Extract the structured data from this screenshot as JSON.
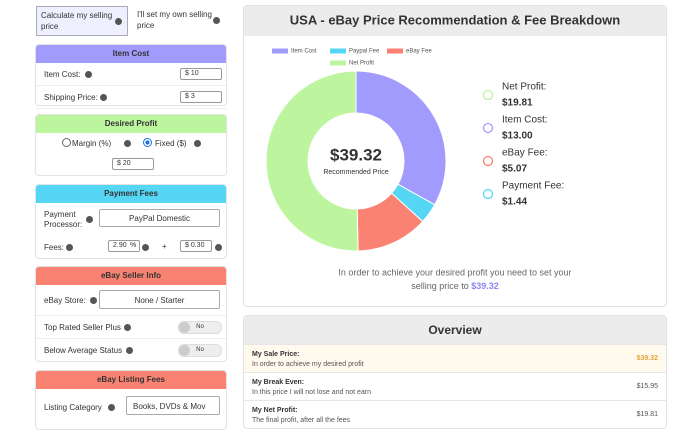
{
  "tabs": [
    "Calculate my selling price",
    "I'll set my own selling price"
  ],
  "item_cost": {
    "title": "Item Cost",
    "rows": [
      {
        "label": "Item Cost:",
        "value": "$ 10"
      },
      {
        "label": "Shipping Price:",
        "value": "$ 3"
      }
    ]
  },
  "desired_profit": {
    "title": "Desired Profit",
    "options": [
      "Margin (%)",
      "Fixed ($)"
    ],
    "value": "$ 20"
  },
  "payment_fees": {
    "title": "Payment Fees",
    "processor_label": "Payment Processor:",
    "processor": "PayPal Domestic",
    "fees_label": "Fees:",
    "percent": "2.90",
    "percent_unit": "%",
    "plus": "+",
    "fixed": "$ 0.30"
  },
  "seller_info": {
    "title": "eBay Seller Info",
    "store_label": "eBay Store:",
    "store": "None / Starter",
    "top_rated_label": "Top Rated Seller Plus",
    "top_rated": "No",
    "below_average_label": "Below Average Status",
    "below_average": "No"
  },
  "listing_fees": {
    "title": "eBay Listing Fees",
    "category_label": "Listing Category",
    "category": "Books, DVDs & Mov"
  },
  "chart_data": {
    "type": "pie",
    "title": "USA - eBay Price Recommendation & Fee Breakdown",
    "categories": [
      "Item Cost",
      "Paypal Fee",
      "eBay Fee",
      "Net Profit"
    ],
    "values": [
      13.0,
      1.44,
      5.07,
      19.81
    ],
    "value_labels": [
      "$13.00",
      "$1.44",
      "$5.07",
      "$19.81"
    ],
    "colors": [
      "#a29bfe",
      "#55d6f5",
      "#f98272",
      "#bdf59e"
    ],
    "center_value": "$39.32",
    "center_label": "Recommended Price"
  },
  "summary": [
    {
      "label": "Net Profit:",
      "index": 3
    },
    {
      "label": "Item Cost:",
      "index": 0
    },
    {
      "label": "eBay Fee:",
      "index": 2
    },
    {
      "label": "Payment Fee:",
      "index": 1
    }
  ],
  "recommendation": {
    "text": "In order to achieve your desired profit you need to set your selling price to",
    "price": "$39.32"
  },
  "overview": {
    "title": "Overview",
    "rows": [
      {
        "title": "My Sale Price:",
        "subtitle": "In order to achieve my desired profit",
        "value": "$39.32"
      },
      {
        "title": "My Break Even:",
        "subtitle": "In this price I will not lose and not earn",
        "value": "$15.95"
      },
      {
        "title": "My Net Profit:",
        "subtitle": "The final profit, after all the fees",
        "value": "$19.81"
      }
    ]
  }
}
